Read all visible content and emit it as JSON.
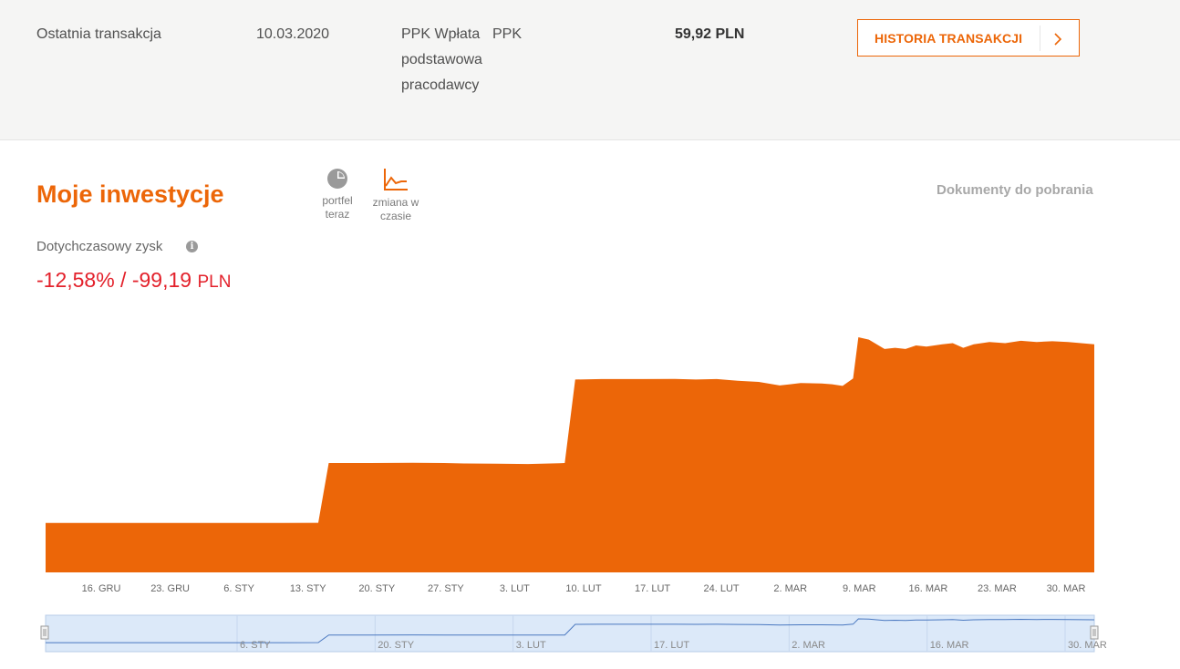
{
  "last_transaction": {
    "label": "Ostatnia transakcja",
    "date": "10.03.2020",
    "type": "PPK Wpłata podstawowa pracodawcy",
    "fund": "PPK",
    "amount": "59,92 PLN",
    "history_button": "HISTORIA TRANSAKCJI"
  },
  "investments": {
    "title": "Moje inwestycje",
    "view_portfolio": "portfel teraz",
    "view_change": "zmiana w czasie",
    "documents_link": "Dokumenty do pobrania",
    "gain_label": "Dotychczasowy zysk",
    "gain_value": "-12,58% / -99,19",
    "gain_currency": "PLN"
  },
  "colors": {
    "accent": "#ec6608",
    "negative": "#e3212b",
    "navigator": "#dce9f9"
  },
  "icons": [
    "pie-chart-icon",
    "line-chart-icon",
    "info-icon",
    "chevron-right-icon"
  ],
  "chart_data": {
    "type": "area",
    "x_ticks": [
      "16. GRU",
      "23. GRU",
      "6. STY",
      "13. STY",
      "20. STY",
      "27. STY",
      "3. LUT",
      "10. LUT",
      "17. LUT",
      "24. LUT",
      "2. MAR",
      "9. MAR",
      "16. MAR",
      "23. MAR",
      "30. MAR"
    ],
    "navigator_ticks": [
      "6. STY",
      "20. STY",
      "3. LUT",
      "17. LUT",
      "2. MAR",
      "16. MAR",
      "30. MAR"
    ],
    "series": [
      {
        "values": [
          [
            0,
            0.21
          ],
          [
            0.23,
            0.21
          ],
          [
            0.227,
            0.21
          ],
          [
            0.26,
            0.211
          ],
          [
            0.27,
            0.465
          ],
          [
            0.31,
            0.465
          ],
          [
            0.35,
            0.466
          ],
          [
            0.38,
            0.465
          ],
          [
            0.4,
            0.463
          ],
          [
            0.43,
            0.462
          ],
          [
            0.46,
            0.461
          ],
          [
            0.49,
            0.464
          ],
          [
            0.495,
            0.465
          ],
          [
            0.505,
            0.82
          ],
          [
            0.53,
            0.822
          ],
          [
            0.57,
            0.822
          ],
          [
            0.6,
            0.823
          ],
          [
            0.62,
            0.82
          ],
          [
            0.64,
            0.822
          ],
          [
            0.66,
            0.815
          ],
          [
            0.68,
            0.81
          ],
          [
            0.7,
            0.795
          ],
          [
            0.71,
            0.8
          ],
          [
            0.72,
            0.805
          ],
          [
            0.74,
            0.803
          ],
          [
            0.75,
            0.8
          ],
          [
            0.76,
            0.793
          ],
          [
            0.77,
            0.825
          ],
          [
            0.775,
            1.0
          ],
          [
            0.785,
            0.99
          ],
          [
            0.8,
            0.95
          ],
          [
            0.81,
            0.955
          ],
          [
            0.82,
            0.95
          ],
          [
            0.83,
            0.965
          ],
          [
            0.84,
            0.96
          ],
          [
            0.855,
            0.97
          ],
          [
            0.865,
            0.975
          ],
          [
            0.875,
            0.955
          ],
          [
            0.885,
            0.97
          ],
          [
            0.9,
            0.98
          ],
          [
            0.915,
            0.975
          ],
          [
            0.93,
            0.985
          ],
          [
            0.945,
            0.98
          ],
          [
            0.96,
            0.983
          ],
          [
            0.975,
            0.98
          ],
          [
            1.0,
            0.97
          ]
        ]
      }
    ]
  }
}
